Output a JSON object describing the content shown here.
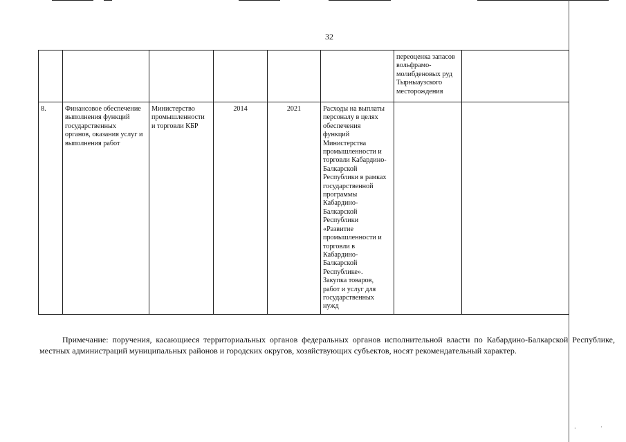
{
  "page_number": "32",
  "table": {
    "rows": [
      [
        "",
        "",
        "",
        "",
        "",
        "",
        "переоценка запасов\nвольфрамо-\nмолибденовых руд\nТырныаузского\nместорождения",
        ""
      ],
      [
        "8.",
        "Финансовое обеспечение\nвыполнения функций\nгосударственных\nорганов, оказания услуг и\nвыполнения работ",
        "Министерство\nпромышленности\nи торговли КБР",
        "2014",
        "2021",
        "Расходы на выплаты\nперсоналу в целях\nобеспечения\nфункций\nМинистерства\nпромышленности и\nторговли Кабардино-\nБалкарской\nРеспублики в рамках\nгосударственной\nпрограммы\nКабардино-\nБалкарской\nРеспублики\n«Развитие\nпромышленности и\nторговли в\nКабардино-\nБалкарской\nРеспублике».\nЗакупка товаров,\nработ и услуг для\nгосударственных\nнужд",
        "",
        ""
      ]
    ]
  },
  "note": "Примечание: поручения, касающиеся территориальных органов федеральных органов исполнительной власти по Кабардино-Балкарской Республике, местных администраций муниципальных районов и городских округов, хозяйствующих субъектов, носят рекомендательный характер."
}
